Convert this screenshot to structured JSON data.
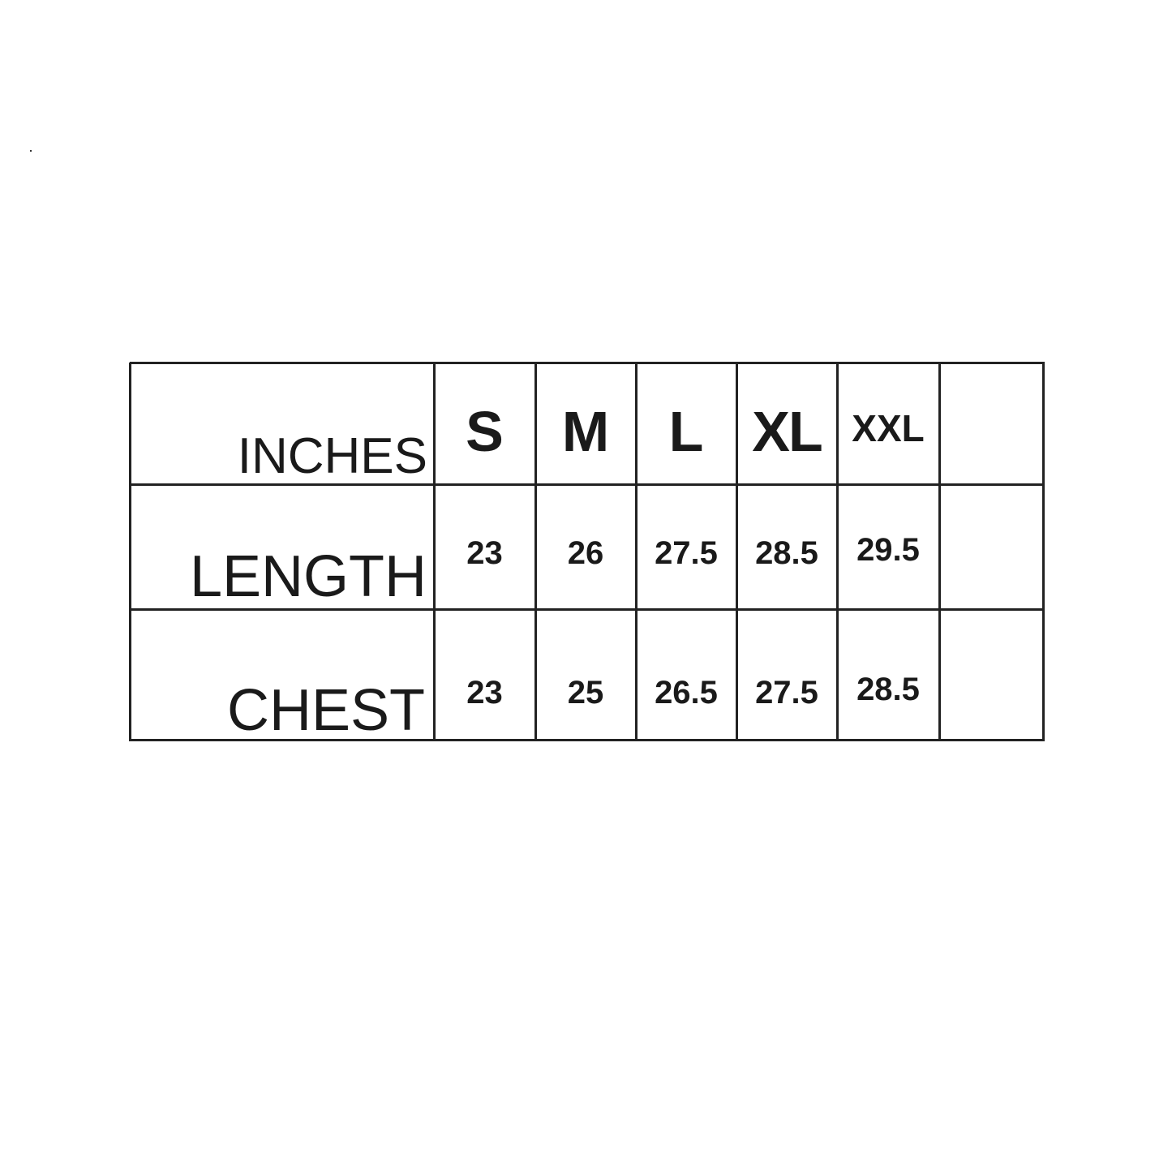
{
  "table": {
    "corner_label": "INCHES",
    "sizes": [
      "S",
      "M",
      "L",
      "XL",
      "XXL",
      ""
    ],
    "rows": [
      {
        "label": "LENGTH",
        "values": [
          "23",
          "26",
          "27.5",
          "28.5",
          "29.5",
          ""
        ]
      },
      {
        "label": "CHEST",
        "values": [
          "23",
          "25",
          "26.5",
          "27.5",
          "28.5",
          ""
        ]
      }
    ]
  }
}
